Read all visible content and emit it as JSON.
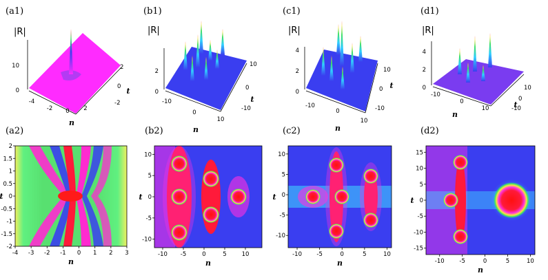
{
  "panel_labels": [
    "(a1)",
    "(b1)",
    "(c1)",
    "(d1)",
    "(a2)",
    "(b2)",
    "(c2)",
    "(d2)"
  ],
  "surface_plots": [
    {
      "id": "a1",
      "zlabel": "|R|",
      "xlabel": "n",
      "ylabel": "t",
      "zticks": [
        "0",
        "10"
      ],
      "xticks": [
        "-4",
        "-2",
        "0",
        "2"
      ],
      "yticks": [
        "2",
        "0",
        "-2"
      ],
      "color": "#ff2bff"
    },
    {
      "id": "b1",
      "zlabel": "|R|",
      "xlabel": "n",
      "ylabel": "t",
      "zticks": [
        "0",
        "2"
      ],
      "xticks": [
        "-10",
        "0",
        "10"
      ],
      "yticks": [
        "10",
        "0",
        "-10"
      ],
      "color": "#3a3ef0"
    },
    {
      "id": "c1",
      "zlabel": "|R|",
      "xlabel": "n",
      "ylabel": "t",
      "zticks": [
        "0",
        "2",
        "4"
      ],
      "xticks": [
        "-10",
        "0",
        "10"
      ],
      "yticks": [
        "10",
        "0",
        "-10"
      ],
      "color": "#3a3ef0"
    },
    {
      "id": "d1",
      "zlabel": "|R|",
      "xlabel": "n",
      "ylabel": "t",
      "zticks": [
        "0",
        "2",
        "4"
      ],
      "xticks": [
        "-10",
        "0",
        "10"
      ],
      "yticks": [
        "10",
        "0",
        "-10"
      ],
      "color": "#7a3cf0"
    }
  ],
  "density_plots": [
    {
      "id": "a2",
      "xlabel": "n",
      "ylabel": "t",
      "xticks": [
        "-4",
        "-3",
        "-2",
        "-1",
        "0",
        "1",
        "2",
        "3"
      ],
      "yticks": [
        "2",
        "1.5",
        "1",
        "0.5",
        "0",
        "-0.5",
        "-1",
        "-1.5",
        "-2"
      ],
      "xlim": [
        -4,
        3
      ],
      "ylim": [
        -2,
        2
      ]
    },
    {
      "id": "b2",
      "xlabel": "n",
      "ylabel": "t",
      "xticks": [
        "-10",
        "-5",
        "0",
        "5",
        "10"
      ],
      "yticks": [
        "10",
        "5",
        "0",
        "-5",
        "-10"
      ],
      "xlim": [
        -12,
        14
      ],
      "ylim": [
        -12,
        12
      ]
    },
    {
      "id": "c2",
      "xlabel": "n",
      "ylabel": "t",
      "xticks": [
        "-10",
        "-5",
        "0",
        "5",
        "10"
      ],
      "yticks": [
        "10",
        "5",
        "0",
        "-5",
        "-10"
      ],
      "xlim": [
        -12,
        11
      ],
      "ylim": [
        -13,
        12
      ]
    },
    {
      "id": "d2",
      "xlabel": "n",
      "ylabel": "t",
      "xticks": [
        "-10",
        "-5",
        "0",
        "5",
        "10"
      ],
      "yticks": [
        "15",
        "10",
        "5",
        "0",
        "-5",
        "-10",
        "-15"
      ],
      "xlim": [
        -13,
        11
      ],
      "ylim": [
        -17,
        17
      ]
    }
  ],
  "colors": {
    "background": "#ffffff",
    "peak_red": "#ff1a1a",
    "low_blue": "#3a3ef0",
    "mid_green": "#40e060",
    "magenta": "#ff2bd0"
  }
}
